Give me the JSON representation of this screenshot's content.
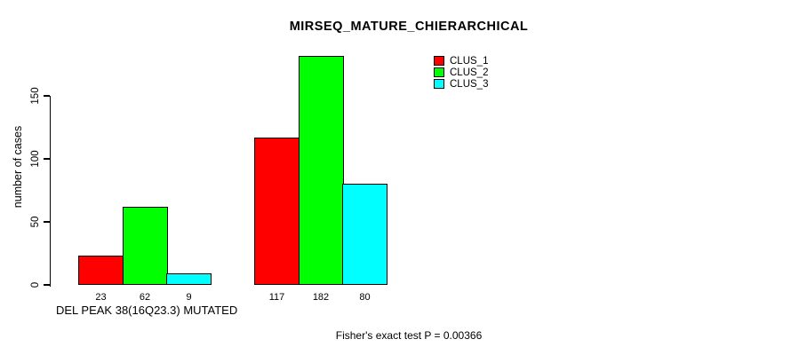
{
  "chart_data": {
    "type": "bar",
    "title": "MIRSEQ_MATURE_CHIERARCHICAL",
    "ylabel": "number of cases",
    "xlabel": "DEL PEAK 38(16Q23.3) MUTATED",
    "groups": 2,
    "series": [
      {
        "name": "CLUS_1",
        "color": "#ff0000",
        "values": [
          23,
          117
        ]
      },
      {
        "name": "CLUS_2",
        "color": "#00ff00",
        "values": [
          62,
          182
        ]
      },
      {
        "name": "CLUS_3",
        "color": "#00ffff",
        "values": [
          9,
          80
        ]
      }
    ],
    "bar_value_labels_shown": true,
    "yticks": [
      0,
      50,
      100,
      150
    ],
    "ylim": [
      0,
      190
    ],
    "grid": false,
    "legend_position": "top-right",
    "bar_border_color": "#000000",
    "background_color": "#ffffff"
  },
  "footer": {
    "stat_text": "Fisher's exact test P = 0.00366"
  }
}
